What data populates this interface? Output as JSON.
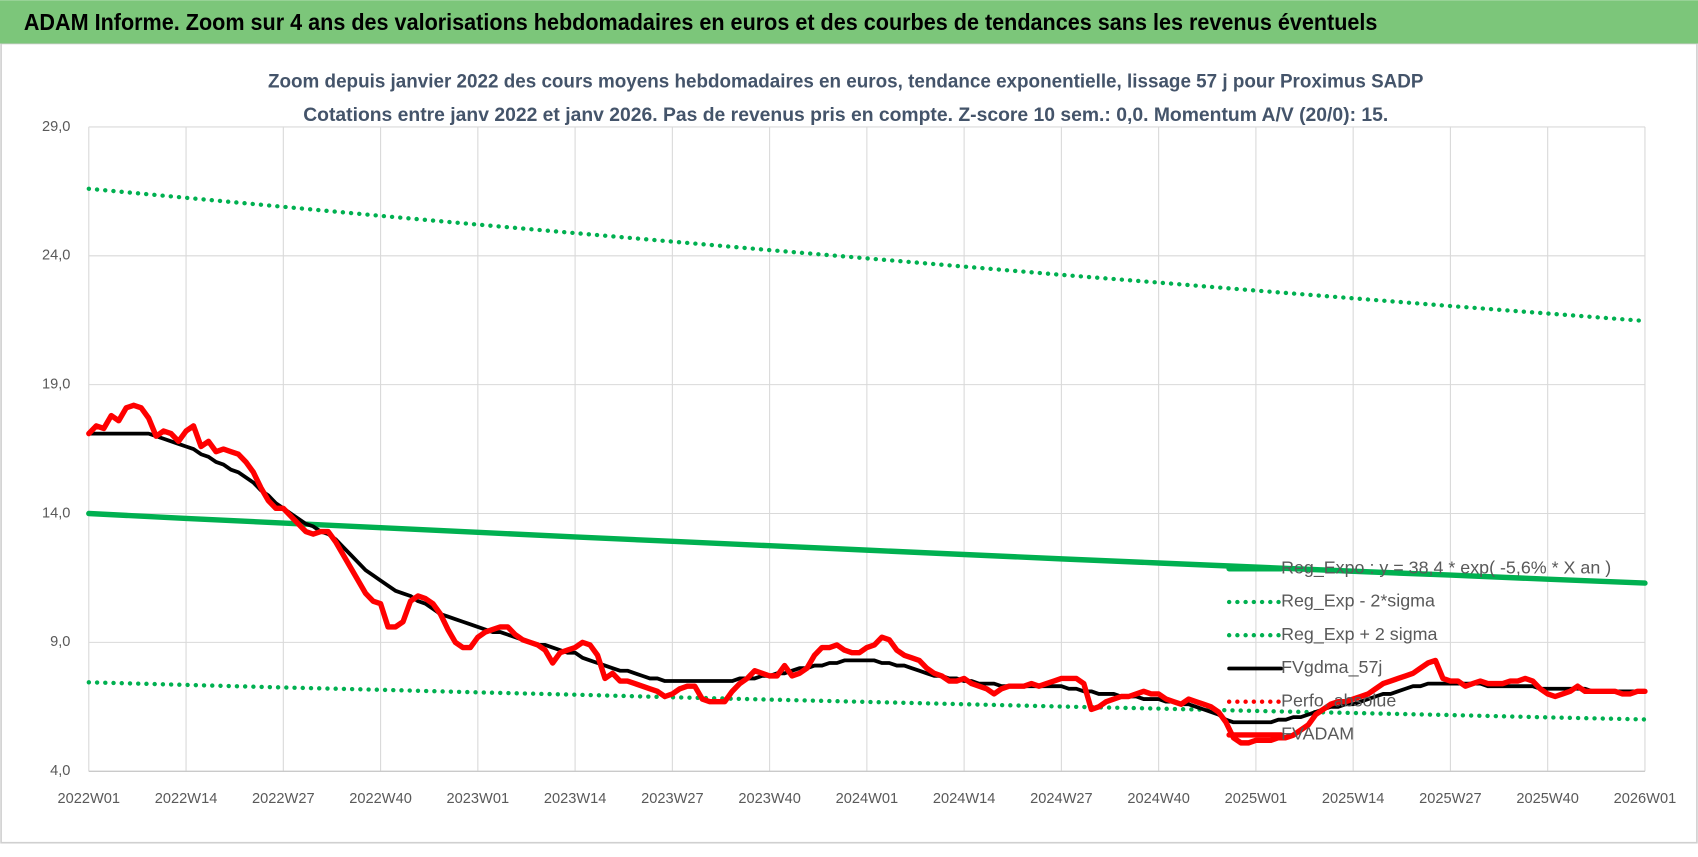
{
  "header": "ADAM Informe. Zoom sur 4 ans des valorisations hebdomadaires en euros et des courbes de tendances sans les revenus éventuels",
  "chart_data": {
    "type": "line",
    "title": "Zoom depuis janvier 2022 des cours moyens hebdomadaires en euros, tendance exponentielle, lissage 57 j pour Proximus SADP",
    "subtitle": "Cotations entre janv 2022 et janv 2026. Pas de revenus pris en compte. Z-score 10 sem.: 0,0. Momentum A/V (20/0):  15.",
    "ylim": [
      4,
      29
    ],
    "yticks": [
      {
        "value": 4,
        "label": "4,0"
      },
      {
        "value": 9,
        "label": "9,0"
      },
      {
        "value": 14,
        "label": "14,0"
      },
      {
        "value": 19,
        "label": "19,0"
      },
      {
        "value": 24,
        "label": "24,0"
      },
      {
        "value": 29,
        "label": "29,0"
      }
    ],
    "grid": true,
    "legend": "lower right",
    "categories": [
      "2022W01",
      null,
      null,
      null,
      null,
      null,
      null,
      null,
      null,
      null,
      null,
      null,
      null,
      "2022W14",
      null,
      null,
      null,
      null,
      null,
      null,
      null,
      null,
      null,
      null,
      null,
      null,
      "2022W27",
      null,
      null,
      null,
      null,
      null,
      null,
      null,
      null,
      null,
      null,
      null,
      null,
      "2022W40",
      null,
      null,
      null,
      null,
      null,
      null,
      null,
      null,
      null,
      null,
      null,
      null,
      "2023W01",
      null,
      null,
      null,
      null,
      null,
      null,
      null,
      null,
      null,
      null,
      null,
      null,
      "2023W14",
      null,
      null,
      null,
      null,
      null,
      null,
      null,
      null,
      null,
      null,
      null,
      null,
      "2023W27",
      null,
      null,
      null,
      null,
      null,
      null,
      null,
      null,
      null,
      null,
      null,
      null,
      "2023W40",
      null,
      null,
      null,
      null,
      null,
      null,
      null,
      null,
      null,
      null,
      null,
      null,
      "2024W01",
      null,
      null,
      null,
      null,
      null,
      null,
      null,
      null,
      null,
      null,
      null,
      null,
      "2024W14",
      null,
      null,
      null,
      null,
      null,
      null,
      null,
      null,
      null,
      null,
      null,
      null,
      "2024W27",
      null,
      null,
      null,
      null,
      null,
      null,
      null,
      null,
      null,
      null,
      null,
      null,
      "2024W40",
      null,
      null,
      null,
      null,
      null,
      null,
      null,
      null,
      null,
      null,
      null,
      null,
      "2025W01",
      null,
      null,
      null,
      null,
      null,
      null,
      null,
      null,
      null,
      null,
      null,
      null,
      "2025W14",
      null,
      null,
      null,
      null,
      null,
      null,
      null,
      null,
      null,
      null,
      null,
      null,
      "2025W27",
      null,
      null,
      null,
      null,
      null,
      null,
      null,
      null,
      null,
      null,
      null,
      null,
      "2025W40",
      null,
      null,
      null,
      null,
      null,
      null,
      null,
      null,
      null,
      null,
      null,
      null,
      "2026W01"
    ],
    "series": [
      {
        "name": "Reg_Expo : y = 38,4 * exp( -5,6% *  X  an )",
        "color": "#00b050",
        "style": "solid",
        "x": [
          "2022W01",
          "2022W14",
          "2022W27",
          "2022W40",
          "2023W01",
          "2023W14",
          "2023W27",
          "2023W40",
          "2024W01",
          "2024W14",
          "2024W27",
          "2024W40",
          "2025W01",
          "2025W14",
          "2025W27",
          "2025W40",
          "2026W01"
        ],
        "values": [
          14.0,
          13.81,
          13.63,
          13.45,
          13.27,
          13.09,
          12.92,
          12.75,
          12.58,
          12.41,
          12.24,
          12.08,
          11.92,
          11.76,
          11.61,
          11.45,
          11.3
        ]
      },
      {
        "name": "Reg_Exp - 2*sigma",
        "color": "#00b050",
        "style": "dotted",
        "x": [
          "2022W01",
          "2022W14",
          "2022W27",
          "2022W40",
          "2023W01",
          "2023W14",
          "2023W27",
          "2023W40",
          "2024W01",
          "2024W14",
          "2024W27",
          "2024W40",
          "2025W01",
          "2025W14",
          "2025W27",
          "2025W40",
          "2026W01"
        ],
        "values": [
          7.45,
          7.35,
          7.25,
          7.16,
          7.06,
          6.97,
          6.87,
          6.78,
          6.69,
          6.6,
          6.51,
          6.43,
          6.34,
          6.26,
          6.18,
          6.09,
          6.01
        ]
      },
      {
        "name": "Reg_Exp + 2 sigma",
        "color": "#00b050",
        "style": "dotted",
        "x": [
          "2022W01",
          "2022W14",
          "2022W27",
          "2022W40",
          "2023W01",
          "2023W14",
          "2023W27",
          "2023W40",
          "2024W01",
          "2024W14",
          "2024W27",
          "2024W40",
          "2025W01",
          "2025W14",
          "2025W27",
          "2025W40",
          "2026W01"
        ],
        "values": [
          26.6,
          26.25,
          25.9,
          25.55,
          25.21,
          24.88,
          24.55,
          24.22,
          23.9,
          23.58,
          23.26,
          22.96,
          22.65,
          22.35,
          22.05,
          21.76,
          21.47
        ]
      },
      {
        "name": "FVgdma_57j",
        "color": "#000000",
        "style": "solid",
        "values": [
          17.1,
          17.1,
          17.1,
          17.1,
          17.1,
          17.1,
          17.1,
          17.1,
          17.1,
          17.0,
          16.9,
          16.8,
          16.7,
          16.6,
          16.5,
          16.3,
          16.2,
          16.0,
          15.9,
          15.7,
          15.6,
          15.4,
          15.2,
          14.9,
          14.7,
          14.4,
          14.2,
          14.0,
          13.8,
          13.6,
          13.5,
          13.3,
          13.2,
          13.0,
          12.7,
          12.4,
          12.1,
          11.8,
          11.6,
          11.4,
          11.2,
          11.0,
          10.9,
          10.8,
          10.6,
          10.5,
          10.3,
          10.1,
          10.0,
          9.9,
          9.8,
          9.7,
          9.6,
          9.5,
          9.4,
          9.4,
          9.3,
          9.2,
          9.1,
          9.0,
          8.9,
          8.9,
          8.8,
          8.7,
          8.6,
          8.6,
          8.4,
          8.3,
          8.2,
          8.1,
          8.0,
          7.9,
          7.9,
          7.8,
          7.7,
          7.6,
          7.6,
          7.5,
          7.5,
          7.5,
          7.5,
          7.5,
          7.5,
          7.5,
          7.5,
          7.5,
          7.5,
          7.6,
          7.6,
          7.6,
          7.7,
          7.7,
          7.8,
          7.8,
          7.9,
          8.0,
          8.0,
          8.1,
          8.1,
          8.2,
          8.2,
          8.3,
          8.3,
          8.3,
          8.3,
          8.3,
          8.2,
          8.2,
          8.1,
          8.1,
          8.0,
          7.9,
          7.8,
          7.7,
          7.7,
          7.6,
          7.6,
          7.5,
          7.5,
          7.4,
          7.4,
          7.4,
          7.3,
          7.3,
          7.3,
          7.3,
          7.3,
          7.3,
          7.3,
          7.3,
          7.3,
          7.2,
          7.2,
          7.1,
          7.1,
          7.0,
          7.0,
          7.0,
          6.9,
          6.9,
          6.9,
          6.8,
          6.8,
          6.8,
          6.7,
          6.7,
          6.6,
          6.6,
          6.5,
          6.4,
          6.3,
          6.2,
          6.0,
          5.9,
          5.9,
          5.9,
          5.9,
          5.9,
          5.9,
          6.0,
          6.0,
          6.1,
          6.1,
          6.2,
          6.3,
          6.4,
          6.5,
          6.5,
          6.6,
          6.6,
          6.7,
          6.8,
          6.9,
          7.0,
          7.0,
          7.1,
          7.2,
          7.3,
          7.3,
          7.4,
          7.4,
          7.4,
          7.4,
          7.4,
          7.4,
          7.4,
          7.4,
          7.3,
          7.3,
          7.3,
          7.3,
          7.3,
          7.3,
          7.3,
          7.2,
          7.2,
          7.2,
          7.2,
          7.2,
          7.2,
          7.2,
          7.1,
          7.1,
          7.1,
          7.1,
          7.1,
          7.1,
          7.1,
          7.1
        ]
      },
      {
        "name": "Perfo. absolue",
        "color": "#ff0000",
        "style": "dotted",
        "x": [],
        "values": []
      },
      {
        "name": "FVADAM",
        "color": "#ff0000",
        "style": "solid",
        "values": [
          17.1,
          17.4,
          17.3,
          17.8,
          17.6,
          18.1,
          18.2,
          18.1,
          17.7,
          17.0,
          17.2,
          17.1,
          16.8,
          17.2,
          17.4,
          16.6,
          16.8,
          16.4,
          16.5,
          16.4,
          16.3,
          16.0,
          15.6,
          15.0,
          14.5,
          14.2,
          14.2,
          13.9,
          13.6,
          13.3,
          13.2,
          13.3,
          13.3,
          12.9,
          12.4,
          11.9,
          11.4,
          10.9,
          10.6,
          10.5,
          9.6,
          9.6,
          9.8,
          10.6,
          10.8,
          10.7,
          10.5,
          10.1,
          9.5,
          9.0,
          8.8,
          8.8,
          9.2,
          9.4,
          9.5,
          9.6,
          9.6,
          9.3,
          9.1,
          9.0,
          8.9,
          8.7,
          8.2,
          8.6,
          8.7,
          8.8,
          9.0,
          8.9,
          8.5,
          7.6,
          7.8,
          7.5,
          7.5,
          7.4,
          7.3,
          7.2,
          7.1,
          6.9,
          7.0,
          7.2,
          7.3,
          7.3,
          6.8,
          6.7,
          6.7,
          6.7,
          7.1,
          7.4,
          7.6,
          7.9,
          7.8,
          7.7,
          7.7,
          8.1,
          7.7,
          7.8,
          8.0,
          8.5,
          8.8,
          8.8,
          8.9,
          8.7,
          8.6,
          8.6,
          8.8,
          8.9,
          9.2,
          9.1,
          8.7,
          8.5,
          8.4,
          8.3,
          8.0,
          7.8,
          7.7,
          7.5,
          7.5,
          7.6,
          7.4,
          7.3,
          7.2,
          7.0,
          7.2,
          7.3,
          7.3,
          7.3,
          7.4,
          7.3,
          7.4,
          7.5,
          7.6,
          7.6,
          7.6,
          7.4,
          6.4,
          6.5,
          6.7,
          6.8,
          6.9,
          6.9,
          7.0,
          7.1,
          7.0,
          7.0,
          6.8,
          6.7,
          6.6,
          6.8,
          6.7,
          6.6,
          6.5,
          6.3,
          5.9,
          5.3,
          5.1,
          5.1,
          5.2,
          5.2,
          5.2,
          5.3,
          5.3,
          5.4,
          5.6,
          5.8,
          6.2,
          6.4,
          6.6,
          6.7,
          6.7,
          6.8,
          6.9,
          7.0,
          7.2,
          7.4,
          7.5,
          7.6,
          7.7,
          7.8,
          8.0,
          8.2,
          8.3,
          7.6,
          7.5,
          7.5,
          7.3,
          7.4,
          7.5,
          7.4,
          7.4,
          7.4,
          7.5,
          7.5,
          7.6,
          7.5,
          7.2,
          7.0,
          6.9,
          7.0,
          7.1,
          7.3,
          7.1,
          7.1,
          7.1,
          7.1,
          7.1,
          7.0,
          7.0,
          7.1,
          7.1
        ]
      }
    ]
  }
}
